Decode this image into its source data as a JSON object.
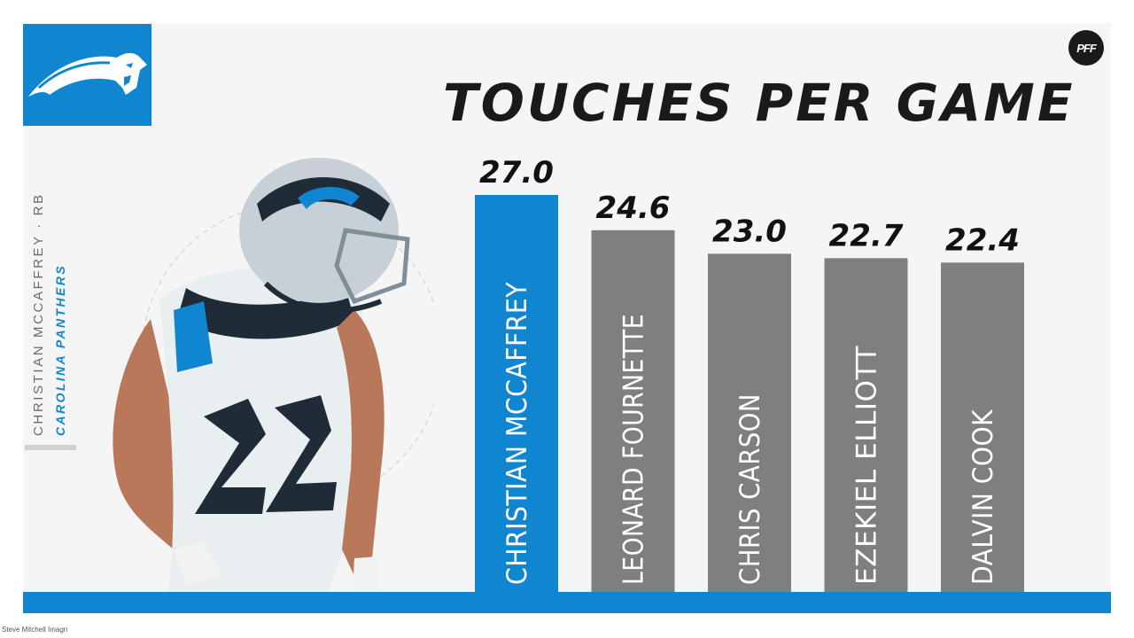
{
  "header": {
    "title": "TOUCHES PER GAME",
    "brand_badge": "PFF"
  },
  "player": {
    "name_line": "CHRISTIAN MCCAFFREY · RB",
    "team": "CAROLINA PANTHERS",
    "jersey_number": "22"
  },
  "credit": "Steve Mitchell  Imagn",
  "colors": {
    "accent": "#0f86cf",
    "bar_other": "#7f7f7f",
    "panel": "#f5f5f5",
    "title": "#1a1a1a"
  },
  "icons": {
    "team_logo": "panther-head-logo",
    "brand": "pff-badge"
  },
  "chart_data": {
    "type": "bar",
    "title": "TOUCHES PER GAME",
    "xlabel": "",
    "ylabel": "",
    "ylim": [
      0,
      27.0
    ],
    "grid": false,
    "categories": [
      "CHRISTIAN MCCAFFREY",
      "LEONARD FOURNETTE",
      "CHRIS CARSON",
      "EZEKIEL ELLIOTT",
      "DALVIN COOK"
    ],
    "values": [
      27.0,
      24.6,
      23.0,
      22.7,
      22.4
    ],
    "value_labels": [
      "27.0",
      "24.6",
      "23.0",
      "22.7",
      "22.4"
    ],
    "highlighted_index": 0
  }
}
